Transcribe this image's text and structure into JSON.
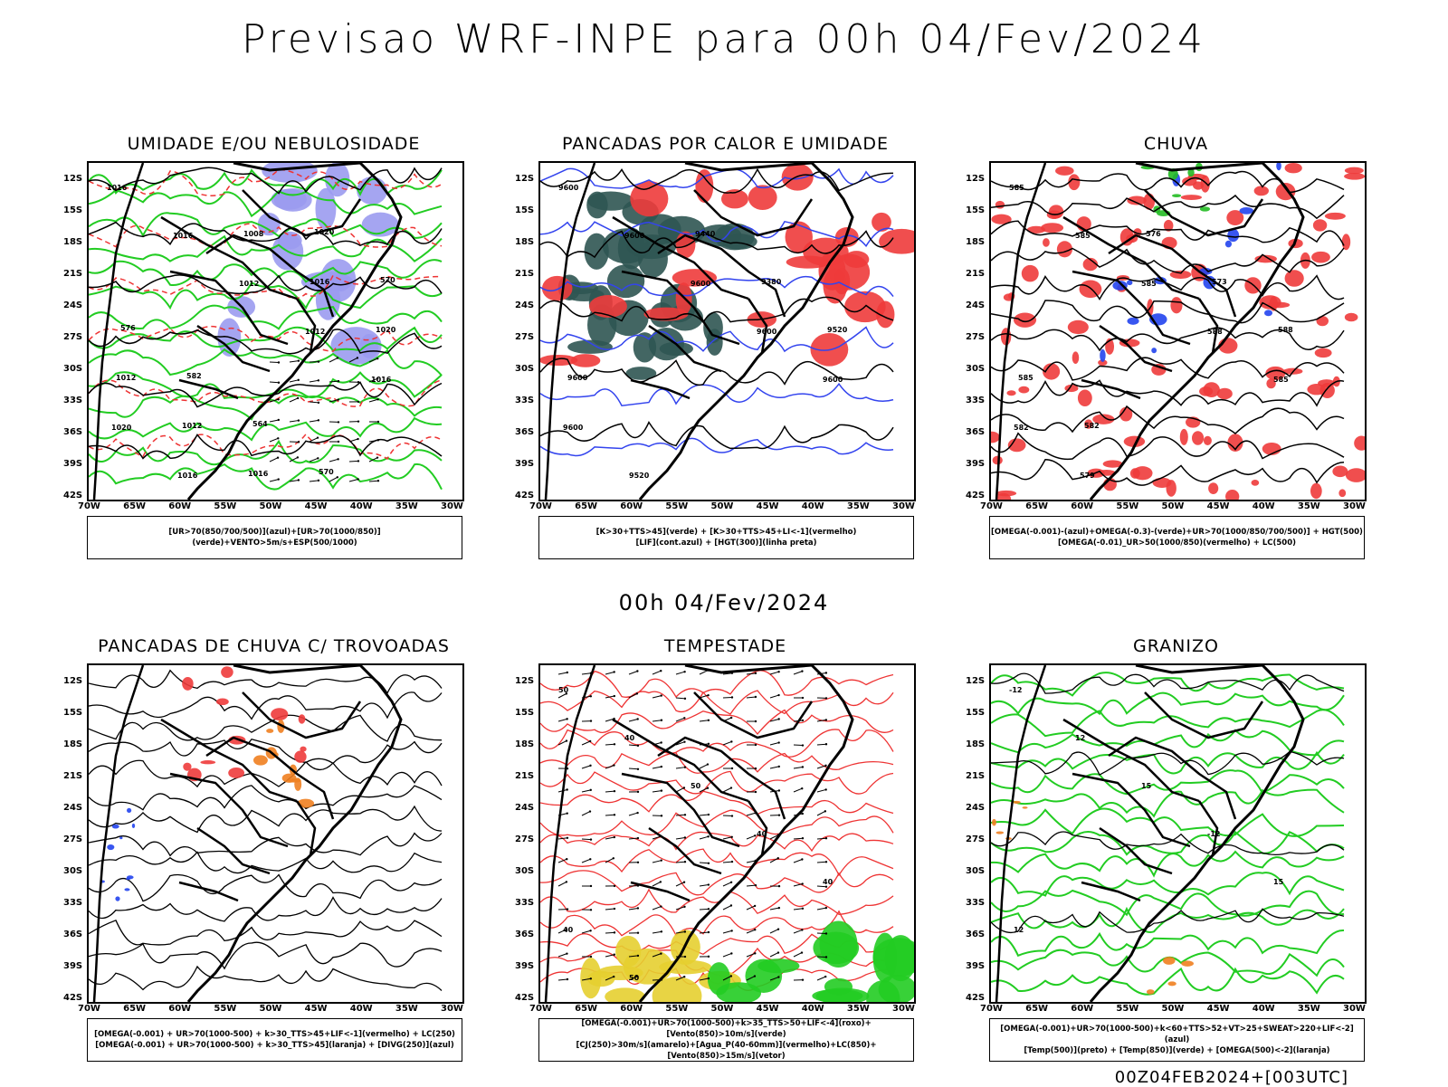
{
  "title": "Previsao WRF-INPE  para 00h 04/Fev/2024",
  "mid_time": "00h 04/Fev/2024",
  "footer": "00Z04FEB2024+[003UTC]",
  "lat_labels": [
    "12S",
    "15S",
    "18S",
    "21S",
    "24S",
    "27S",
    "30S",
    "33S",
    "36S",
    "39S",
    "42S"
  ],
  "lon_labels": [
    "70W",
    "65W",
    "60W",
    "55W",
    "50W",
    "45W",
    "40W",
    "35W",
    "30W"
  ],
  "panels": [
    {
      "title": "UMIDADE E/OU NEBULOSIDADE",
      "legend": [
        "[UR>70(850/700/500)](azul)+[UR>70(1000/850)](verde)+VENTO>5m/s+ESP(500/1000)"
      ],
      "contour_labels": [
        "1016",
        "1016",
        "1012",
        "1012",
        "1016",
        "1020",
        "1016",
        "1008",
        "1016",
        "1020",
        "1012",
        "1012",
        "1016",
        "1020",
        "570",
        "576",
        "582",
        "564",
        "570"
      ]
    },
    {
      "title": "PANCADAS POR CALOR E UMIDADE",
      "legend": [
        "[K>30+TTS>45](verde) + [K>30+TTS>45+LI<-1](vermelho)",
        "[LIF](cont.azul) + [HGT(300)](linha preta)"
      ],
      "contour_labels": [
        "9600",
        "9600",
        "9600",
        "9600",
        "9600",
        "9600",
        "9520",
        "9440",
        "9380",
        "9520",
        "9600"
      ]
    },
    {
      "title": "CHUVA",
      "legend": [
        "[OMEGA(-0.001)-(azul)+OMEGA(-0.3)-(verde)+UR>70(1000/850/700/500)] + HGT(500)",
        "[OMEGA(-0.01)_UR>50(1000/850)(vermelho) + LC(500)"
      ],
      "contour_labels": [
        "585",
        "585",
        "585",
        "588",
        "585",
        "582",
        "579",
        "576",
        "573",
        "588",
        "585",
        "582"
      ]
    },
    {
      "title": "PANCADAS DE CHUVA C/ TROVOADAS",
      "legend": [
        "[OMEGA(-0.001) + UR>70(1000-500) + k>30_TTS>45+LIF<-1](vermelho) + LC(250)",
        "[OMEGA(-0.001) + UR>70(1000-500) + k>30_TTS>45](laranja) + [DIVG(250)](azul)"
      ],
      "contour_labels": []
    },
    {
      "title": "TEMPESTADE",
      "legend": [
        "[OMEGA(-0.001)+UR>70(1000-500)+k>35_TTS>50+LIF<-4](roxo)+[Vento(850)>10m/s](verde)",
        "[CJ(250)>30m/s](amarelo)+[Agua_P(40-60mm)](vermelho)+LC(850)+[Vento(850)>15m/s](vetor)"
      ],
      "contour_labels": [
        "50",
        "40",
        "50",
        "40",
        "40",
        "40",
        "50"
      ]
    },
    {
      "title": "GRANIZO",
      "legend": [
        "[OMEGA(-0.001)+UR>70(1000-500)+k<60+TTS>52+VT>25+SWEAT>220+LIF<-2](azul)",
        "[Temp(500)](preto) + [Temp(850)](verde) + [OMEGA(500)<-2](laranja)"
      ],
      "contour_labels": [
        "-12",
        "12",
        "15",
        "-12",
        "15",
        "12"
      ]
    }
  ]
}
